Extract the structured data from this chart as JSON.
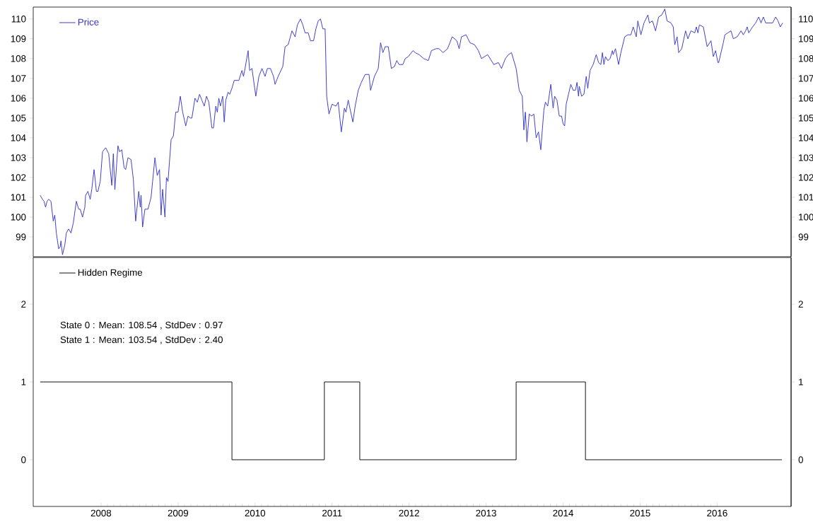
{
  "chart_data": [
    {
      "type": "line",
      "xlim": [
        2007.12,
        2016.96
      ],
      "ylim": [
        98.0,
        110.6
      ],
      "yticks": [
        99,
        100,
        101,
        102,
        103,
        104,
        105,
        106,
        107,
        108,
        109,
        110
      ],
      "y2lim": [
        98.0,
        110.6
      ],
      "y2ticks": [
        99,
        100,
        101,
        102,
        103,
        104,
        105,
        106,
        107,
        108,
        109,
        110
      ],
      "tick_labels": "y",
      "legend": "top left",
      "series": [
        {
          "name": "Price",
          "color": "#3333cc",
          "x": [
            2007.21,
            2007.24,
            2007.26,
            2007.28,
            2007.3,
            2007.32,
            2007.35,
            2007.38,
            2007.4,
            2007.42,
            2007.45,
            2007.47,
            2007.48,
            2007.5,
            2007.53,
            2007.55,
            2007.58,
            2007.61,
            2007.64,
            2007.68,
            2007.71,
            2007.73,
            2007.76,
            2007.79,
            2007.8,
            2007.83,
            2007.86,
            2007.88,
            2007.91,
            2007.94,
            2007.96,
            2007.99,
            2008.02,
            2008.06,
            2008.1,
            2008.14,
            2008.16,
            2008.18,
            2008.22,
            2008.24,
            2008.27,
            2008.3,
            2008.32,
            2008.35,
            2008.39,
            2008.42,
            2008.45,
            2008.49,
            2008.51,
            2008.52,
            2008.54,
            2008.57,
            2008.61,
            2008.65,
            2008.67,
            2008.7,
            2008.73,
            2008.76,
            2008.78,
            2008.8,
            2008.83,
            2008.85,
            2008.87,
            2008.91,
            2008.94,
            2008.97,
            2009.0,
            2009.03,
            2009.06,
            2009.1,
            2009.13,
            2009.16,
            2009.18,
            2009.22,
            2009.25,
            2009.28,
            2009.31,
            2009.34,
            2009.37,
            2009.4,
            2009.44,
            2009.46,
            2009.49,
            2009.51,
            2009.53,
            2009.55,
            2009.58,
            2009.6,
            2009.62,
            2009.65,
            2009.67,
            2009.7,
            2009.73,
            2009.76,
            2009.79,
            2009.83,
            2009.85,
            2009.87,
            2009.91,
            2009.93,
            2009.96,
            2010.01,
            2010.05,
            2010.09,
            2010.13,
            2010.16,
            2010.2,
            2010.24,
            2010.26,
            2010.3,
            2010.36,
            2010.39,
            2010.43,
            2010.48,
            2010.52,
            2010.55,
            2010.59,
            2010.62,
            2010.65,
            2010.69,
            2010.72,
            2010.76,
            2010.79,
            2010.82,
            2010.85,
            2010.88,
            2010.91,
            2010.93,
            2010.96,
            2011.0,
            2011.05,
            2011.08,
            2011.12,
            2011.16,
            2011.18,
            2011.21,
            2011.27,
            2011.3,
            2011.34,
            2011.38,
            2011.43,
            2011.48,
            2011.5,
            2011.55,
            2011.6,
            2011.63,
            2011.66,
            2011.69,
            2011.73,
            2011.77,
            2011.81,
            2011.84,
            2011.87,
            2011.92,
            2011.95,
            2011.99,
            2012.05,
            2012.08,
            2012.13,
            2012.19,
            2012.25,
            2012.29,
            2012.35,
            2012.39,
            2012.44,
            2012.5,
            2012.56,
            2012.62,
            2012.65,
            2012.68,
            2012.74,
            2012.79,
            2012.85,
            2012.9,
            2012.94,
            2013.02,
            2013.1,
            2013.16,
            2013.2,
            2013.25,
            2013.29,
            2013.33,
            2013.39,
            2013.43,
            2013.47,
            2013.49,
            2013.51,
            2013.53,
            2013.56,
            2013.59,
            2013.62,
            2013.65,
            2013.68,
            2013.71,
            2013.75,
            2013.77,
            2013.8,
            2013.84,
            2013.87,
            2013.89,
            2013.92,
            2013.95,
            2013.98,
            2014.0,
            2014.02,
            2014.04,
            2014.07,
            2014.1,
            2014.13,
            2014.16,
            2014.18,
            2014.2,
            2014.21,
            2014.24,
            2014.27,
            2014.3,
            2014.32,
            2014.35,
            2014.39,
            2014.43,
            2014.46,
            2014.49,
            2014.51,
            2014.53,
            2014.55,
            2014.58,
            2014.61,
            2014.64,
            2014.65,
            2014.68,
            2014.72,
            2014.75,
            2014.8,
            2014.84,
            2014.88,
            2014.91,
            2014.95,
            2014.97,
            2015.01,
            2015.05,
            2015.1,
            2015.12,
            2015.16,
            2015.2,
            2015.24,
            2015.28,
            2015.32,
            2015.35,
            2015.4,
            2015.43,
            2015.45,
            2015.48,
            2015.5,
            2015.54,
            2015.59,
            2015.62,
            2015.66,
            2015.71,
            2015.73,
            2015.75,
            2015.77,
            2015.82,
            2015.87,
            2015.92,
            2015.95,
            2015.98,
            2016.01,
            2016.02,
            2016.08,
            2016.1,
            2016.14,
            2016.18,
            2016.21,
            2016.26,
            2016.31,
            2016.34,
            2016.37,
            2016.39,
            2016.41,
            2016.46,
            2016.5,
            2016.54,
            2016.57,
            2016.6,
            2016.63,
            2016.72,
            2016.76,
            2016.79,
            2016.82,
            2016.85
          ],
          "values": [
            101.1,
            100.9,
            100.8,
            100.5,
            100.8,
            100.9,
            100.8,
            99.8,
            100.1,
            99.2,
            98.4,
            98.5,
            98.8,
            98.1,
            98.6,
            99.2,
            99.4,
            99.2,
            99.7,
            100.8,
            100.4,
            100.4,
            100.0,
            100.5,
            101.1,
            101.3,
            100.9,
            101.4,
            102.4,
            101.3,
            101.3,
            101.8,
            103.3,
            103.5,
            103.2,
            101.6,
            103.2,
            101.4,
            103.6,
            103.3,
            103.4,
            102.5,
            102.4,
            103.0,
            102.9,
            101.9,
            99.8,
            101.3,
            100.5,
            101.1,
            99.5,
            100.4,
            100.4,
            101.0,
            101.8,
            103.0,
            102.1,
            102.4,
            100.1,
            101.4,
            100.0,
            102.0,
            101.8,
            103.9,
            104.1,
            105.3,
            105.3,
            106.1,
            105.3,
            104.6,
            105.1,
            105.0,
            105.0,
            106.0,
            105.8,
            106.2,
            105.9,
            105.6,
            106.1,
            105.8,
            104.5,
            104.5,
            105.6,
            105.3,
            106.0,
            105.6,
            106.1,
            104.8,
            105.9,
            106.3,
            106.2,
            106.5,
            106.9,
            106.9,
            106.9,
            107.4,
            107.1,
            107.5,
            108.4,
            107.4,
            107.5,
            106.1,
            107.1,
            107.5,
            107.1,
            107.5,
            107.5,
            107.1,
            106.7,
            107.1,
            107.6,
            108.6,
            108.7,
            109.4,
            109.1,
            109.7,
            110.0,
            109.7,
            109.3,
            109.3,
            108.9,
            108.9,
            109.5,
            109.9,
            110.0,
            109.5,
            109.5,
            106.1,
            105.2,
            105.7,
            105.6,
            105.8,
            104.3,
            105.5,
            105.3,
            105.9,
            104.8,
            105.6,
            106.4,
            106.8,
            107.2,
            107.2,
            106.4,
            107.1,
            107.5,
            108.8,
            108.3,
            108.6,
            108.6,
            107.5,
            107.6,
            107.9,
            107.7,
            107.7,
            108.0,
            108.1,
            108.4,
            108.3,
            108.2,
            108.0,
            107.9,
            108.4,
            108.5,
            108.5,
            108.3,
            108.5,
            109.1,
            108.9,
            108.5,
            109.1,
            109.2,
            108.8,
            108.7,
            108.4,
            108.0,
            108.2,
            107.7,
            107.8,
            107.5,
            108.0,
            108.2,
            108.3,
            107.5,
            106.4,
            106.1,
            104.4,
            105.3,
            103.8,
            105.2,
            105.1,
            105.2,
            104.0,
            104.3,
            103.4,
            105.4,
            105.8,
            105.6,
            106.7,
            105.5,
            106.1,
            105.9,
            105.1,
            105.1,
            104.7,
            104.6,
            105.7,
            106.2,
            106.7,
            106.4,
            106.4,
            106.8,
            106.1,
            106.6,
            106.1,
            106.2,
            107.1,
            106.5,
            107.4,
            107.7,
            108.2,
            107.8,
            107.7,
            108.3,
            107.7,
            108.1,
            107.9,
            108.0,
            108.4,
            108.2,
            108.5,
            107.7,
            108.3,
            109.1,
            109.2,
            109.2,
            109.6,
            109.1,
            109.9,
            109.2,
            109.8,
            110.2,
            109.8,
            109.9,
            109.4,
            110.1,
            110.2,
            110.5,
            109.9,
            109.8,
            109.6,
            108.7,
            109.1,
            108.3,
            108.5,
            109.4,
            109.0,
            109.4,
            109.3,
            109.6,
            109.3,
            109.7,
            109.6,
            108.6,
            108.9,
            108.1,
            108.4,
            107.8,
            107.8,
            108.8,
            109.2,
            109.3,
            109.4,
            109.0,
            109.1,
            109.4,
            109.2,
            109.4,
            109.6,
            109.3,
            109.6,
            109.8,
            110.1,
            109.8,
            110.1,
            109.8,
            109.8,
            110.1,
            109.9,
            109.6,
            109.8
          ]
        }
      ]
    },
    {
      "type": "step",
      "xlim": [
        2007.12,
        2016.96
      ],
      "xticks": [
        2008,
        2009,
        2010,
        2011,
        2012,
        2013,
        2014,
        2015,
        2016
      ],
      "ylim": [
        -0.6,
        2.6
      ],
      "yticks": [
        0,
        1,
        2
      ],
      "y2lim": [
        -0.6,
        2.6
      ],
      "y2ticks": [
        0,
        1,
        2
      ],
      "legend": "top left",
      "annotations": [
        "State 0 : Mean: 108.54 , StdDev : 0.97",
        "State 1 : Mean: 103.54 , StdDev : 2.40"
      ],
      "series": [
        {
          "name": "Hidden Regime",
          "color": "#000000",
          "x": [
            2007.21,
            2009.7,
            2010.9,
            2011.36,
            2013.39,
            2014.29,
            2016.84
          ],
          "values": [
            1,
            0,
            1,
            0,
            1,
            0,
            0
          ]
        }
      ]
    }
  ]
}
